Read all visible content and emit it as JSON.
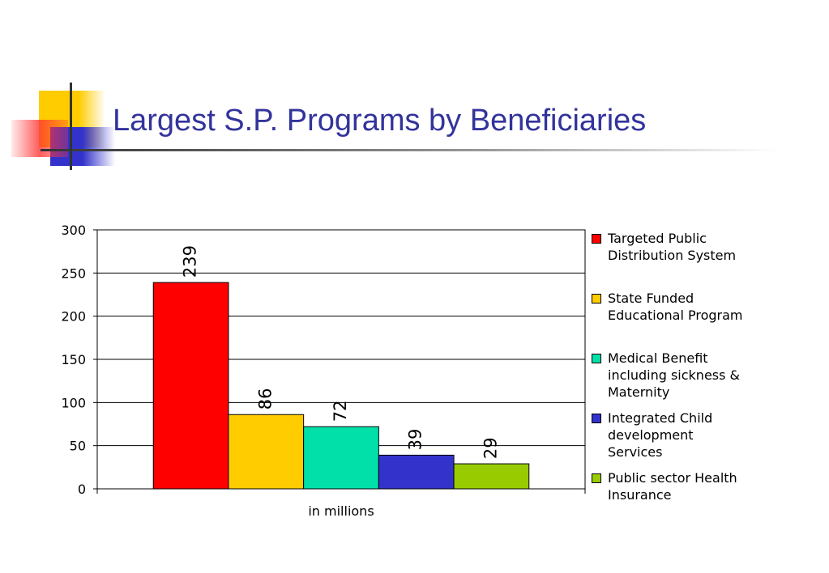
{
  "slide": {
    "title": "Largest S.P. Programs by Beneficiaries"
  },
  "colors": {
    "title": "#33339c",
    "deco_yellow": "#ffcc00",
    "deco_blue": "#3333cc",
    "deco_red": "#ff3333"
  },
  "chart_data": {
    "type": "bar",
    "title": "",
    "xlabel": "in millions",
    "ylabel": "",
    "ylim": [
      0,
      300
    ],
    "yticks": [
      0,
      50,
      100,
      150,
      200,
      250,
      300
    ],
    "grid": true,
    "legend_position": "right",
    "series": [
      {
        "name": "Targeted Public Distribution System",
        "values": [
          239
        ],
        "color": "#ff0000"
      },
      {
        "name": "State Funded Educational Program",
        "values": [
          86
        ],
        "color": "#ffcc00"
      },
      {
        "name": "Medical Benefit including sickness & Maternity",
        "values": [
          72
        ],
        "color": "#00e0a8"
      },
      {
        "name": "Integrated  Child development Services",
        "values": [
          39
        ],
        "color": "#3333cc"
      },
      {
        "name": "Public sector Health Insurance",
        "values": [
          29
        ],
        "color": "#99cc00"
      }
    ]
  },
  "legend": {
    "items": [
      {
        "label": "Targeted Public\nDistribution System"
      },
      {
        "label": "State Funded\nEducational Program"
      },
      {
        "label": "Medical Benefit\nincluding sickness &\nMaternity"
      },
      {
        "label": "Integrated  Child\ndevelopment\nServices"
      },
      {
        "label": "Public sector Health\nInsurance"
      }
    ]
  }
}
